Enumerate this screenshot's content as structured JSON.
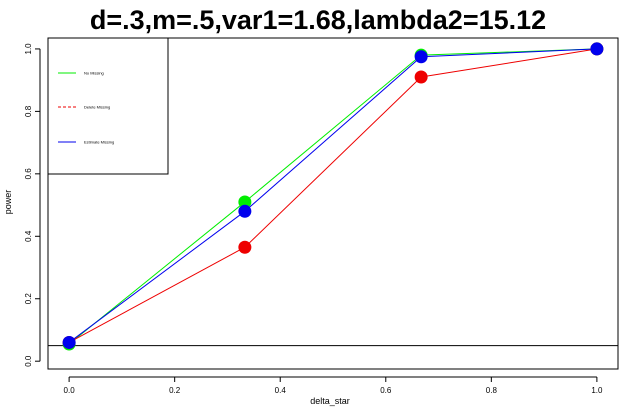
{
  "chart_data": {
    "type": "line",
    "title": "d=.3,m=.5,var1=1.68,lambda2=15.12",
    "xlabel": "delta_star",
    "ylabel": "power",
    "xlim": [
      -0.04,
      1.04
    ],
    "ylim": [
      -0.025,
      1.035
    ],
    "xticks": [
      0.0,
      0.2,
      0.4,
      0.6,
      0.8,
      1.0
    ],
    "xtick_labels": [
      "0.0",
      "0.2",
      "0.4",
      "0.6",
      "0.8",
      "1.0"
    ],
    "yticks": [
      0.0,
      0.2,
      0.4,
      0.6,
      0.8,
      1.0
    ],
    "ytick_labels": [
      "0.0",
      "0.2",
      "0.4",
      "0.6",
      "0.8",
      "1.0"
    ],
    "reference_line_y": 0.05,
    "legend_position": "top-left",
    "series": [
      {
        "name": "No Missing",
        "color": "#00ee00",
        "line_style": "solid",
        "x": [
          0.0,
          0.333,
          0.667,
          1.0
        ],
        "y": [
          0.055,
          0.51,
          0.98,
          1.0
        ]
      },
      {
        "name": "Delete Missing",
        "color": "#ee0000",
        "line_style": "dashed",
        "x": [
          0.0,
          0.333,
          0.667,
          1.0
        ],
        "y": [
          0.06,
          0.365,
          0.91,
          1.0
        ]
      },
      {
        "name": "Estimate Missing",
        "color": "#0000ee",
        "line_style": "solid",
        "x": [
          0.0,
          0.333,
          0.667,
          1.0
        ],
        "y": [
          0.06,
          0.48,
          0.975,
          1.0
        ]
      }
    ]
  }
}
